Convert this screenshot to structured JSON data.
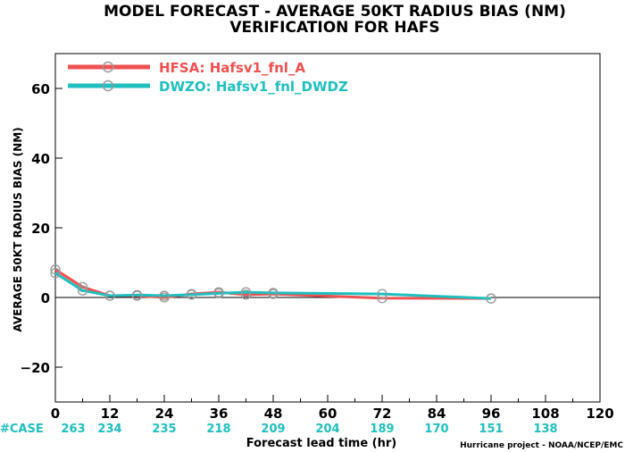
{
  "chart_data": {
    "type": "line",
    "title": "MODEL FORECAST - AVERAGE 50KT RADIUS BIAS (NM)",
    "subtitle": "VERIFICATION FOR HAFS",
    "xlabel": "Forecast lead time (hr)",
    "ylabel": "AVERAGE 50KT RADIUS BIAS (NM)",
    "xlim": [
      0,
      120
    ],
    "ylim": [
      -30,
      70
    ],
    "x_ticks": [
      0,
      12,
      24,
      36,
      48,
      60,
      72,
      84,
      96,
      108,
      120
    ],
    "y_ticks": [
      -20,
      0,
      20,
      40,
      60
    ],
    "grid": false,
    "legend_position": "top-left",
    "zero_line": true,
    "series": [
      {
        "name": "HFSA: Hafsv1_fnl_A",
        "color": "#f05050",
        "x": [
          0,
          6,
          12,
          18,
          24,
          30,
          36,
          42,
          48,
          72,
          96
        ],
        "y": [
          8,
          3,
          0.5,
          0.5,
          0,
          1,
          1.5,
          0.8,
          1,
          -0.2,
          -0.3
        ]
      },
      {
        "name": "DWZO: Hafsv1_fnl_DWDZ",
        "color": "#1fbfbf",
        "x": [
          0,
          6,
          12,
          18,
          24,
          30,
          36,
          42,
          48,
          72,
          96
        ],
        "y": [
          7,
          2,
          0.5,
          0.7,
          0.5,
          0.8,
          1.2,
          1.5,
          1.3,
          1,
          -0.3
        ]
      }
    ],
    "case_label": "#CASE",
    "case_counts": [
      {
        "x": 0,
        "count": "263"
      },
      {
        "x": 12,
        "count": "234"
      },
      {
        "x": 24,
        "count": "235"
      },
      {
        "x": 36,
        "count": "218"
      },
      {
        "x": 48,
        "count": "209"
      },
      {
        "x": 60,
        "count": "204"
      },
      {
        "x": 72,
        "count": "189"
      },
      {
        "x": 84,
        "count": "170"
      },
      {
        "x": 96,
        "count": "151"
      },
      {
        "x": 108,
        "count": "138"
      }
    ],
    "credit": "Hurricane project - NOAA/NCEP/EMC"
  }
}
